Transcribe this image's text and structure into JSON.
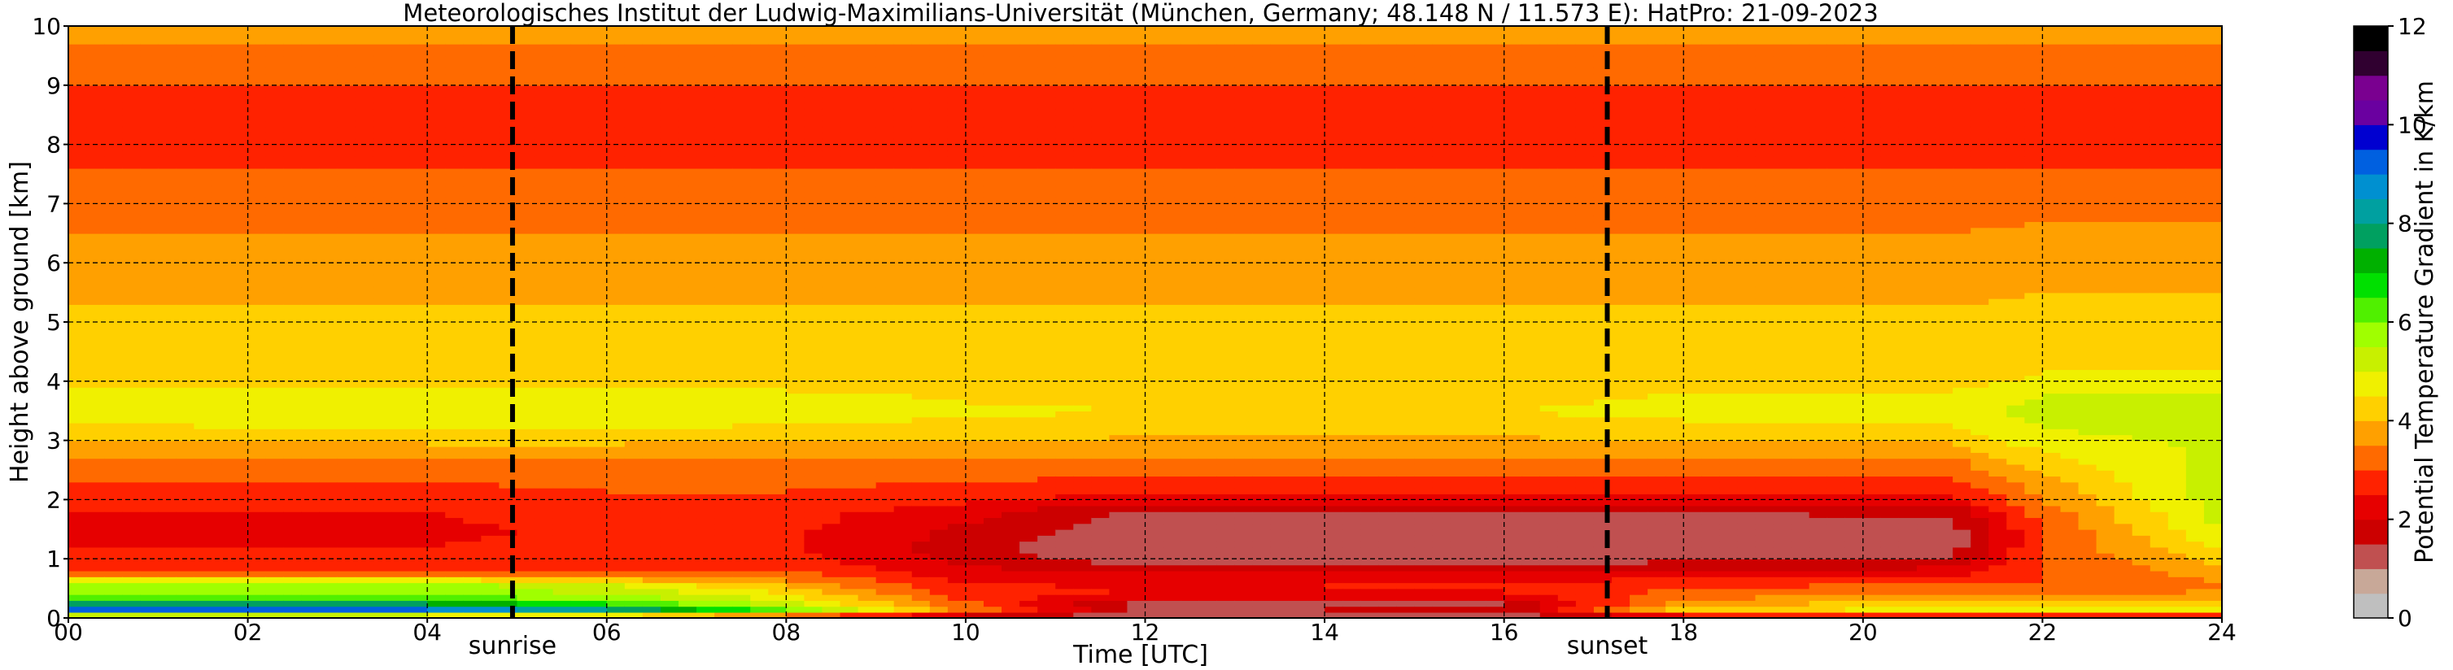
{
  "chart_data": {
    "type": "heatmap",
    "title": "Meteorologisches Institut der Ludwig-Maximilians-Universität (München, Germany; 48.148 N / 11.573 E):    HatPro: 21-09-2023",
    "xlabel": "Time [UTC]",
    "ylabel": "Height above ground [km]",
    "x_ticks": [
      "00",
      "02",
      "04",
      "06",
      "08",
      "10",
      "12",
      "14",
      "16",
      "18",
      "20",
      "22",
      "24"
    ],
    "y_ticks": [
      "0",
      "1",
      "2",
      "3",
      "4",
      "5",
      "6",
      "7",
      "8",
      "9",
      "10"
    ],
    "xlim": [
      0,
      24
    ],
    "ylim": [
      0,
      10
    ],
    "grid": true,
    "events": [
      {
        "label": "sunrise",
        "time": 4.95
      },
      {
        "label": "sunset",
        "time": 17.15
      }
    ],
    "colorbar": {
      "label": "Potential Temperature Gradient in K/km",
      "range": [
        0,
        12
      ],
      "ticks": [
        "0",
        "2",
        "4",
        "6",
        "8",
        "10",
        "12"
      ],
      "colors": [
        "#bfbfbf",
        "#c8a898",
        "#c05050",
        "#cc0000",
        "#e60000",
        "#ff2200",
        "#ff6a00",
        "#ffa000",
        "#ffd000",
        "#f0f000",
        "#c8f000",
        "#a0ff00",
        "#50f000",
        "#00e000",
        "#00b000",
        "#00a060",
        "#00a0a0",
        "#0090d0",
        "#0060e0",
        "#0000d0",
        "#6a00a0",
        "#7a0090",
        "#300030",
        "#000000"
      ]
    },
    "height_profile_km": [
      0,
      0.1,
      0.2,
      0.3,
      0.4,
      0.5,
      0.6,
      0.7,
      0.8,
      1.0,
      1.2,
      1.5,
      1.8,
      2.0,
      2.3,
      2.6,
      3.0,
      3.2,
      3.5,
      3.8,
      4.0,
      4.5,
      5.0,
      5.5,
      6.0,
      6.5,
      7.0,
      7.5,
      8.0,
      8.5,
      9.0,
      9.5,
      10.0
    ],
    "profiles": [
      {
        "time": 0,
        "values": [
          0.5,
          9.5,
          8.5,
          6.5,
          6,
          5.5,
          6,
          3.2,
          3,
          2.6,
          2.5,
          2.4,
          2.5,
          2.7,
          3,
          3.3,
          4,
          4.4,
          4.8,
          4.6,
          4.2,
          4,
          4.1,
          3.9,
          3.7,
          3.5,
          3.3,
          3.1,
          2.6,
          2.5,
          3.0,
          3.2,
          3.8
        ]
      },
      {
        "time": 4,
        "values": [
          0.5,
          9.5,
          8.5,
          6.5,
          6,
          5.6,
          6,
          3.3,
          3,
          2.6,
          2.5,
          2.4,
          2.5,
          2.7,
          3,
          3.3,
          4.1,
          4.5,
          4.9,
          4.7,
          4.2,
          4,
          4.1,
          3.9,
          3.7,
          3.5,
          3.3,
          3.1,
          2.6,
          2.5,
          3.0,
          3.2,
          3.8
        ]
      },
      {
        "time": 6,
        "values": [
          0.5,
          9,
          7,
          6,
          5.5,
          5.2,
          5,
          3.3,
          3,
          2.7,
          2.6,
          2.6,
          2.7,
          2.9,
          3.1,
          3.4,
          4.1,
          4.5,
          4.9,
          4.7,
          4.2,
          4,
          4.1,
          3.9,
          3.7,
          3.5,
          3.3,
          3.1,
          2.6,
          2.5,
          3.0,
          3.2,
          3.8
        ]
      },
      {
        "time": 8,
        "values": [
          0.5,
          6.5,
          5.5,
          5,
          4.5,
          4.2,
          3.8,
          3.3,
          3,
          2.7,
          2.6,
          2.6,
          2.7,
          2.9,
          3.1,
          3.4,
          4.0,
          4.4,
          4.8,
          4.6,
          4.2,
          4,
          4.1,
          3.9,
          3.7,
          3.5,
          3.3,
          3.1,
          2.6,
          2.5,
          3.0,
          3.2,
          3.8
        ]
      },
      {
        "time": 10,
        "values": [
          0.5,
          3.5,
          3.2,
          3,
          2.8,
          2.6,
          2.5,
          2.3,
          2.2,
          1.8,
          1.7,
          1.9,
          2.2,
          2.6,
          3.0,
          3.4,
          4.0,
          4.3,
          4.6,
          4.4,
          4.1,
          4,
          4.1,
          3.9,
          3.7,
          3.5,
          3.3,
          3.1,
          2.6,
          2.5,
          3.0,
          3.2,
          3.8
        ]
      },
      {
        "time": 12,
        "values": [
          0.5,
          1.8,
          1,
          1.6,
          2.4,
          2.5,
          2.4,
          2.2,
          1.8,
          1.2,
          1.0,
          1.1,
          1.4,
          2.2,
          2.8,
          3.3,
          3.9,
          4.2,
          4.5,
          4.3,
          4.1,
          4,
          4.1,
          3.9,
          3.7,
          3.5,
          3.3,
          3.1,
          2.6,
          2.5,
          3.0,
          3.2,
          3.8
        ]
      },
      {
        "time": 16,
        "values": [
          0.5,
          2,
          1.2,
          1.7,
          2.4,
          2.6,
          2.5,
          2.2,
          1.8,
          1.2,
          1.0,
          1.1,
          1.4,
          2.2,
          2.8,
          3.3,
          3.9,
          4.2,
          4.5,
          4.3,
          4.1,
          4,
          4.1,
          3.9,
          3.7,
          3.5,
          3.3,
          3.1,
          2.6,
          2.5,
          3.0,
          3.2,
          3.8
        ]
      },
      {
        "time": 18,
        "values": [
          0.5,
          4.5,
          4,
          3.6,
          3.2,
          3,
          2.8,
          2.4,
          2,
          1.4,
          1.2,
          1.2,
          1.5,
          2.3,
          2.9,
          3.3,
          4.0,
          4.3,
          4.7,
          4.5,
          4.1,
          4,
          4.1,
          3.9,
          3.7,
          3.5,
          3.3,
          3.1,
          2.6,
          2.5,
          3.0,
          3.2,
          3.8
        ]
      },
      {
        "time": 21,
        "values": [
          0.5,
          4.8,
          4.5,
          4,
          3.6,
          3.2,
          3,
          2.6,
          2.2,
          1.5,
          1.3,
          1.3,
          1.6,
          2.3,
          2.9,
          3.3,
          4.1,
          4.4,
          4.8,
          4.6,
          4.2,
          4,
          4.1,
          3.9,
          3.7,
          3.5,
          3.3,
          3.1,
          2.6,
          2.5,
          3.0,
          3.2,
          3.8
        ]
      },
      {
        "time": 22,
        "values": [
          0.5,
          5,
          4.5,
          3.8,
          3.4,
          3.2,
          3,
          3,
          3,
          3,
          3,
          3,
          3.2,
          3.5,
          3.8,
          4.2,
          4.8,
          5.0,
          5.2,
          5.0,
          4.6,
          4.3,
          4.2,
          4.0,
          3.8,
          3.6,
          3.3,
          3.1,
          2.6,
          2.5,
          3.0,
          3.2,
          3.8
        ]
      },
      {
        "time": 24,
        "values": [
          0.5,
          5,
          4.5,
          4,
          3.6,
          3.5,
          3.5,
          3.6,
          3.8,
          4.2,
          4.6,
          5.0,
          5.2,
          5.3,
          5.3,
          5.2,
          5.1,
          5.2,
          5.3,
          5.0,
          4.6,
          4.3,
          4.2,
          4.0,
          3.8,
          3.6,
          3.3,
          3.1,
          2.6,
          2.5,
          3.0,
          3.2,
          3.8
        ]
      }
    ]
  }
}
